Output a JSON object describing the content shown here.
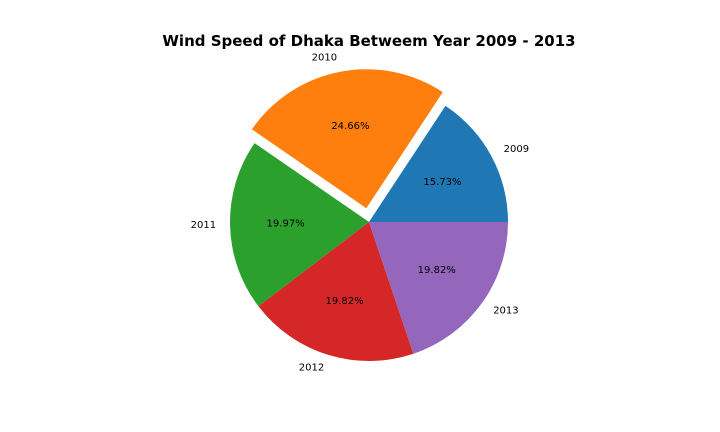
{
  "chart_data": {
    "type": "pie",
    "title": "Wind Speed of Dhaka Betweem Year 2009 - 2013",
    "categories": [
      "2009",
      "2010",
      "2011",
      "2012",
      "2013"
    ],
    "values": [
      15.73,
      24.66,
      19.97,
      19.82,
      19.82
    ],
    "percent_labels": [
      "15.73%",
      "24.66%",
      "19.97%",
      "19.82%",
      "19.82%"
    ],
    "colors": [
      "#1f77b4",
      "#ff7f0e",
      "#2ca02c",
      "#d62728",
      "#9467bd"
    ],
    "exploded": "2010",
    "start_angle_deg": 0,
    "direction": "counterclockwise"
  }
}
